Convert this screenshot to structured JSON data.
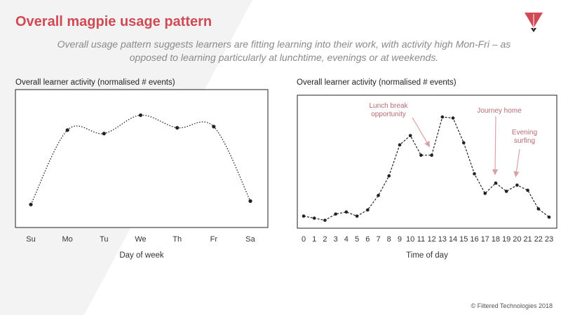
{
  "header": {
    "title": "Overall magpie usage pattern",
    "subtitle": "Overall usage pattern suggests learners are fitting learning into their work, with activity high Mon-Fri – as opposed to learning particularly at lunchtime, evenings or at weekends."
  },
  "footer": {
    "copyright": "© Filtered Technologies 2018"
  },
  "colors": {
    "accent": "#d04a55",
    "annotation": "#d9a0a6",
    "line": "#222222"
  },
  "chart_data": [
    {
      "type": "line",
      "title": "Overall learner activity (normalised # events)",
      "xlabel": "Day of week",
      "ylabel": "",
      "categories": [
        "Su",
        "Mo",
        "Tu",
        "We",
        "Th",
        "Fr",
        "Sa"
      ],
      "values": [
        0.17,
        0.82,
        0.79,
        0.95,
        0.84,
        0.85,
        0.2
      ],
      "ylim": [
        0,
        1.1
      ],
      "line_style": "dotted",
      "smooth": true,
      "grid": false
    },
    {
      "type": "line",
      "title": "Overall learner activity (normalised # events)",
      "xlabel": "Time of day",
      "ylabel": "",
      "categories": [
        "0",
        "1",
        "2",
        "3",
        "4",
        "5",
        "6",
        "7",
        "8",
        "9",
        "10",
        "11",
        "12",
        "13",
        "14",
        "15",
        "16",
        "17",
        "18",
        "19",
        "20",
        "21",
        "22",
        "23"
      ],
      "values": [
        0.04,
        0.02,
        0.0,
        0.06,
        0.08,
        0.04,
        0.1,
        0.24,
        0.43,
        0.73,
        0.82,
        0.63,
        0.63,
        1.0,
        0.99,
        0.75,
        0.45,
        0.26,
        0.36,
        0.28,
        0.34,
        0.29,
        0.11,
        0.03
      ],
      "ylim": [
        -0.05,
        1.15
      ],
      "line_style": "dashed",
      "grid": false,
      "annotations": [
        {
          "text": [
            "Lunch break",
            "opportunity"
          ],
          "target_x": 12
        },
        {
          "text": [
            "Journey home"
          ],
          "target_x": 18
        },
        {
          "text": [
            "Evening",
            "surfing"
          ],
          "target_x": 20
        }
      ]
    }
  ]
}
